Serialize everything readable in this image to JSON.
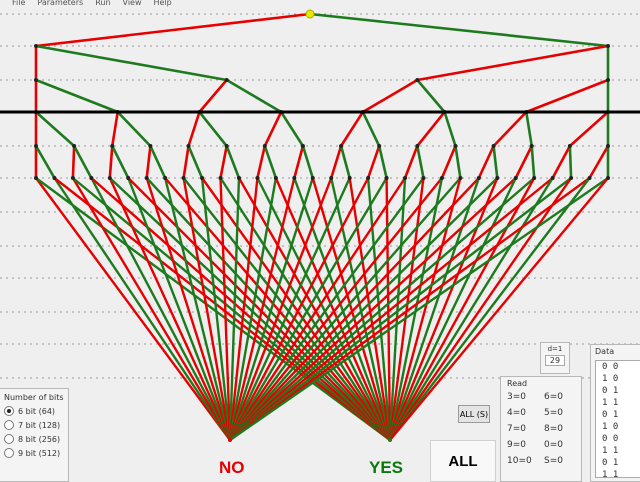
{
  "menu": [
    "File",
    "Parameters",
    "Run",
    "View",
    "Help"
  ],
  "outcomes": {
    "no": "NO",
    "yes": "YES"
  },
  "buttons": {
    "all_small": "ALL (S)",
    "all_big": "ALL"
  },
  "bits_panel": {
    "title": "Number of bits",
    "options": [
      {
        "label": "6 bit (64)",
        "selected": true
      },
      {
        "label": "7 bit (128)",
        "selected": false
      },
      {
        "label": "8 bit (256)",
        "selected": false
      },
      {
        "label": "9 bit (512)",
        "selected": false
      }
    ]
  },
  "read_panel": {
    "title": "Read",
    "rows": [
      [
        "3=0",
        "6=0"
      ],
      [
        "4=0",
        "5=0"
      ],
      [
        "7=0",
        "8=0"
      ],
      [
        "9=0",
        "0=0"
      ],
      [
        "10=0",
        "S=0"
      ]
    ]
  },
  "count_box": {
    "label": "d=1",
    "value": "29"
  },
  "data_panel": {
    "title": "Data",
    "rows": [
      "0  0",
      "1  0",
      "0  1",
      "1  1",
      "0  1",
      "1  0",
      "0  0",
      "1  1",
      "0  1",
      "1  1"
    ]
  },
  "colors": {
    "red": "#e60000",
    "green": "#1e7a1e",
    "node_top": "#e8e800"
  }
}
